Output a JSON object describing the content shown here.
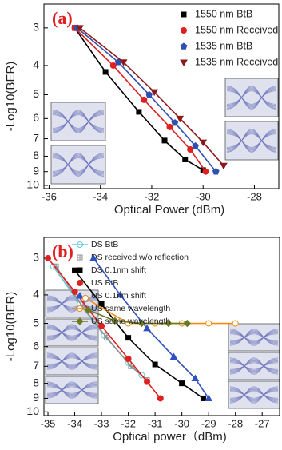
{
  "chart_data": [
    {
      "type": "line",
      "label": "(a)",
      "y_label": "-Log10(BER)",
      "x_label": "Optical Power (dBm)",
      "y_scale": "log",
      "xlim": [
        -36.2,
        -27.05
      ],
      "ylim": [
        10.25,
        2.5
      ],
      "xticks": [
        -36,
        -34,
        -32,
        -30,
        -28
      ],
      "yticks": [
        3,
        4,
        5,
        6,
        7,
        8,
        9,
        10
      ],
      "series": [
        {
          "name": "1550 nm BtB",
          "color": "#000000",
          "marker": "square",
          "x": [
            -35,
            -33.8,
            -32.5,
            -31.5,
            -30.7,
            -30.0
          ],
          "values": [
            3.0,
            4.2,
            5.7,
            7.1,
            8.2,
            8.9
          ]
        },
        {
          "name": "1550 nm Received",
          "color": "#e02020",
          "marker": "circle",
          "x": [
            -35,
            -33.5,
            -32.3,
            -31.3,
            -30.5,
            -29.9
          ],
          "values": [
            3.0,
            4.0,
            5.2,
            6.4,
            7.6,
            9.0
          ]
        },
        {
          "name": "1535 nm BtB",
          "color": "#3050b0",
          "marker": "pentagon",
          "x": [
            -34.9,
            -33.3,
            -32.1,
            -31.1,
            -30.3,
            -29.5
          ],
          "values": [
            3.0,
            3.9,
            5.0,
            6.2,
            7.4,
            9.0
          ]
        },
        {
          "name": "1535 nm Received",
          "color": "#8b1a1a",
          "marker": "triangle-down",
          "x": [
            -34.8,
            -33.1,
            -31.9,
            -30.9,
            -30.0,
            -29.2
          ],
          "values": [
            3.0,
            3.9,
            4.9,
            6.0,
            7.2,
            8.6
          ]
        }
      ]
    },
    {
      "type": "line",
      "label": "(b)",
      "y_label": "-Log10(BER)",
      "x_label": "Optical power（dBm)",
      "y_scale": "log",
      "xlim": [
        -35.15,
        -26.35
      ],
      "ylim": [
        10.3,
        2.55
      ],
      "xticks": [
        -35,
        -34,
        -33,
        -32,
        -31,
        -30,
        -29,
        -28,
        -27
      ],
      "yticks": [
        3,
        4,
        5,
        6,
        7,
        8,
        9,
        10
      ],
      "series": [
        {
          "name": "DS BtB",
          "color": "#60c8d8",
          "marker": "open-circle",
          "x": [
            -34.8,
            -33.8,
            -32.9,
            -32.0,
            -31.5
          ],
          "values": [
            3.2,
            4.3,
            5.5,
            6.8,
            7.5
          ]
        },
        {
          "name": "DS received w/o reflection",
          "color": "#909090",
          "marker": "cross-square",
          "x": [
            -34.7,
            -33.7,
            -32.8,
            -31.9,
            -31.3
          ],
          "values": [
            3.2,
            4.4,
            5.6,
            7.0,
            7.8
          ]
        },
        {
          "name": "DS 0.1nm shift",
          "color": "#000000",
          "marker": "square",
          "x": [
            -34,
            -33,
            -32,
            -31,
            -30,
            -29.2
          ],
          "values": [
            3.3,
            4.3,
            5.6,
            6.9,
            8.0,
            9.0
          ]
        },
        {
          "name": "US BtB",
          "color": "#e02020",
          "marker": "circle",
          "x": [
            -35,
            -34,
            -33,
            -32,
            -31.3,
            -30.8
          ],
          "values": [
            3.0,
            3.9,
            5.1,
            6.6,
            7.9,
            9.0
          ]
        },
        {
          "name": "US 0.1nm shift",
          "color": "#3050c0",
          "marker": "triangle-up",
          "x": [
            -33.3,
            -32.3,
            -31.3,
            -30.3,
            -29.5,
            -29.0
          ],
          "values": [
            3.0,
            4.0,
            5.2,
            6.5,
            7.7,
            9.0
          ]
        },
        {
          "name": "US same wavelength",
          "color": "#f08c10",
          "marker": "open-circle",
          "x": [
            -33.6,
            -32,
            -31,
            -30,
            -29,
            -28
          ],
          "values": [
            4.1,
            5.0,
            5.0,
            5.0,
            5.0,
            5.0
          ]
        },
        {
          "name": "US same wavelength",
          "color": "#6b7a20",
          "marker": "diamond",
          "x": [
            -33.5,
            -32.5,
            -31.5,
            -30.5,
            -29.8
          ],
          "values": [
            4.5,
            4.9,
            5.0,
            5.0,
            5.0
          ]
        }
      ]
    }
  ]
}
